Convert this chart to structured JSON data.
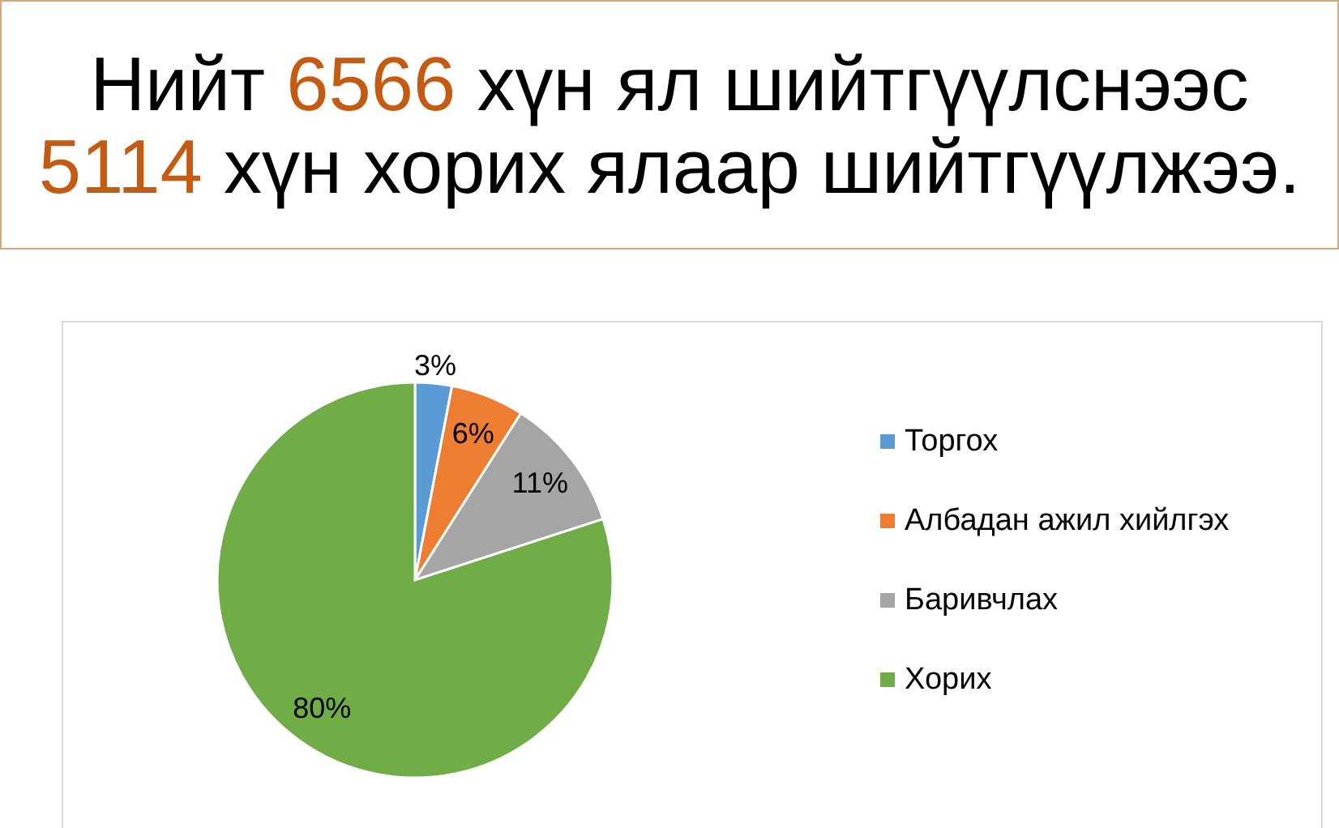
{
  "chart_data": {
    "type": "pie",
    "title": "Нийт 6566 хүн ял шийтгүүлснээс 5114 хүн хорих ялаар шийтгүүлжээ.",
    "categories": [
      "Торгох",
      "Албадан ажил хийлгэх",
      "Баривчлах",
      "Хорих"
    ],
    "values": [
      3,
      6,
      11,
      80
    ],
    "value_labels": [
      "3%",
      "6%",
      "11%",
      "80%"
    ],
    "colors": [
      "#5b9bd5",
      "#ed7d31",
      "#a5a5a5",
      "#70ad47"
    ],
    "legend": "right"
  }
}
